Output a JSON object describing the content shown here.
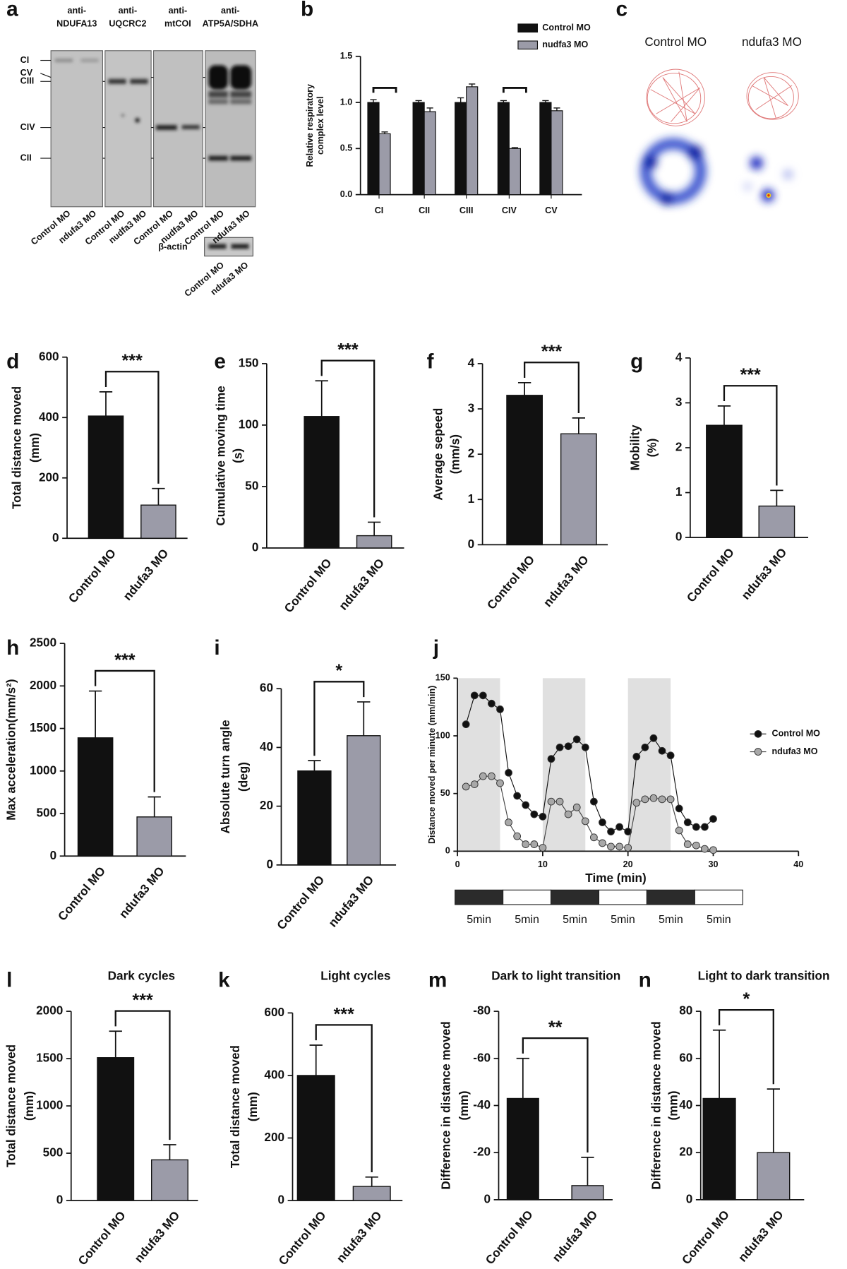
{
  "blot": {
    "panel": "a",
    "antibodies": [
      [
        "anti-",
        "NDUFA13"
      ],
      [
        "anti-",
        "UQCRC2"
      ],
      [
        "anti-",
        "mtCOI"
      ],
      [
        "anti-",
        "ATP5A/SDHA"
      ]
    ],
    "complexes": [
      "CI",
      "CV",
      "CIII",
      "CIV",
      "CII"
    ],
    "lanes": [
      [
        "Control MO",
        "ndufa3 MO"
      ],
      [
        "Control MO",
        "nudfa3 MO"
      ],
      [
        "Control MO",
        "nudfa3 MO"
      ],
      [
        "Control MO",
        "ndufa3 MO"
      ]
    ],
    "actin": {
      "label": "β-actin",
      "lanes": [
        "Control MO",
        "ndufa3 MO"
      ]
    }
  },
  "tracking": {
    "panel": "c",
    "groups": [
      "Control MO",
      "ndufa3 MO"
    ]
  },
  "chart_data": [
    {
      "panel": "b",
      "type": "grouped_bar",
      "categories": [
        "CI",
        "CII",
        "CIII",
        "CIV",
        "CV"
      ],
      "series": [
        {
          "name": "Control MO",
          "color": "#111111",
          "values": [
            1.0,
            1.0,
            1.0,
            1.0,
            1.0
          ],
          "errors": [
            0.03,
            0.02,
            0.05,
            0.02,
            0.02
          ]
        },
        {
          "name": "nudfa3 MO",
          "color": "#9b9ba8",
          "values": [
            0.66,
            0.9,
            1.17,
            0.5,
            0.91
          ],
          "errors": [
            0.02,
            0.04,
            0.03,
            0.01,
            0.03
          ]
        }
      ],
      "ylim": [
        0,
        1.5
      ],
      "yticks": [
        {
          "value": 0,
          "label": "0.0"
        },
        {
          "value": 0.5,
          "label": "0.5"
        },
        {
          "value": 1,
          "label": "1.0"
        },
        {
          "value": 1.5,
          "label": "1.5"
        }
      ],
      "ylabel": [
        "Relative respiratory",
        "complex level"
      ]
    },
    {
      "panel": "d",
      "type": "bar",
      "categories": [
        "Control MO",
        "ndufa3 MO"
      ],
      "values": [
        405,
        110
      ],
      "errors": [
        80,
        55
      ],
      "colors": [
        "#111111",
        "#9b9ba8"
      ],
      "ylim": [
        0,
        600
      ],
      "yticks": [
        0,
        200,
        400,
        600
      ],
      "ylabel": [
        "Total distance moved",
        "(mm)"
      ],
      "significance": "***"
    },
    {
      "panel": "e",
      "type": "bar",
      "categories": [
        "Control MO",
        "ndufa3 MO"
      ],
      "values": [
        107,
        10
      ],
      "errors": [
        29,
        11
      ],
      "colors": [
        "#111111",
        "#9b9ba8"
      ],
      "ylim": [
        0,
        150
      ],
      "yticks": [
        0,
        50,
        100,
        150
      ],
      "ylabel": [
        "Cumulative moving time",
        "(s)"
      ],
      "significance": "***"
    },
    {
      "panel": "f",
      "type": "bar",
      "categories": [
        "Control MO",
        "ndufa3 MO"
      ],
      "values": [
        3.3,
        2.45
      ],
      "errors": [
        0.28,
        0.35
      ],
      "colors": [
        "#111111",
        "#9b9ba8"
      ],
      "ylim": [
        0,
        4
      ],
      "yticks": [
        0,
        1,
        2,
        3,
        4
      ],
      "ylabel": [
        "Average sepeed",
        "(mm/s)"
      ],
      "significance": "***"
    },
    {
      "panel": "g",
      "type": "bar",
      "categories": [
        "Control MO",
        "ndufa3 MO"
      ],
      "values": [
        2.5,
        0.7
      ],
      "errors": [
        0.43,
        0.35
      ],
      "colors": [
        "#111111",
        "#9b9ba8"
      ],
      "ylim": [
        0,
        4
      ],
      "yticks": [
        0,
        1,
        2,
        3,
        4
      ],
      "ylabel": [
        "Mobility",
        "(%)"
      ],
      "significance": "***"
    },
    {
      "panel": "h",
      "type": "bar",
      "categories": [
        "Control MO",
        "ndufa3 MO"
      ],
      "values": [
        1390,
        460
      ],
      "errors": [
        550,
        235
      ],
      "colors": [
        "#111111",
        "#9b9ba8"
      ],
      "ylim": [
        0,
        2500
      ],
      "yticks": [
        0,
        500,
        1000,
        1500,
        2000,
        2500
      ],
      "ylabel": [
        "Max acceleration(mm/s²)"
      ],
      "significance": "***"
    },
    {
      "panel": "i",
      "type": "bar",
      "categories": [
        "Control MO",
        "ndufa3 MO"
      ],
      "values": [
        32,
        44
      ],
      "errors": [
        3.5,
        11.5
      ],
      "colors": [
        "#111111",
        "#9b9ba8"
      ],
      "ylim": [
        0,
        60
      ],
      "yticks": [
        0,
        20,
        40,
        60
      ],
      "ylabel": [
        "Absolute turn angle",
        "(deg)"
      ],
      "significance": "*"
    },
    {
      "panel": "j",
      "type": "line",
      "x": [
        1,
        2,
        3,
        4,
        5,
        6,
        7,
        8,
        9,
        10,
        11,
        12,
        13,
        14,
        15,
        16,
        17,
        18,
        19,
        20,
        21,
        22,
        23,
        24,
        25,
        26,
        27,
        28,
        29,
        30
      ],
      "series": [
        {
          "name": "Control MO",
          "color": "#111111",
          "marker_fill": "#111111",
          "values": [
            110,
            135,
            135,
            128,
            123,
            68,
            48,
            40,
            32,
            30,
            80,
            90,
            91,
            97,
            90,
            43,
            25,
            17,
            21,
            17,
            82,
            90,
            98,
            87,
            83,
            37,
            25,
            21,
            21,
            28
          ]
        },
        {
          "name": "ndufa3 MO",
          "color": "#444444",
          "marker_fill": "#a8a8a8",
          "values": [
            56,
            58,
            65,
            65,
            59,
            25,
            13,
            6,
            6,
            3,
            43,
            43,
            32,
            38,
            26,
            12,
            7,
            4,
            4,
            3,
            42,
            45,
            46,
            45,
            45,
            18,
            6,
            5,
            2,
            1
          ]
        }
      ],
      "xlim": [
        0,
        40
      ],
      "xticks": [
        0,
        10,
        20,
        30,
        40
      ],
      "ylim": [
        0,
        150
      ],
      "yticks": [
        0,
        50,
        100,
        150
      ],
      "xlabel": "Time (min)",
      "ylabel": "Distance moved per minute (mm/min)",
      "dark_periods": [
        [
          0,
          5
        ],
        [
          10,
          15
        ],
        [
          20,
          25
        ]
      ],
      "light_bar": {
        "labels": [
          "5min",
          "5min",
          "5min",
          "5min",
          "5min",
          "5min"
        ],
        "colors": [
          "#2b2b2b",
          "#ffffff",
          "#2b2b2b",
          "#ffffff",
          "#2b2b2b",
          "#ffffff"
        ]
      }
    },
    {
      "panel": "l",
      "type": "bar",
      "title": "Dark cycles",
      "categories": [
        "Control MO",
        "ndufa3 MO"
      ],
      "values": [
        1510,
        430
      ],
      "errors": [
        280,
        160
      ],
      "colors": [
        "#111111",
        "#9b9ba8"
      ],
      "ylim": [
        0,
        2000
      ],
      "yticks": [
        0,
        500,
        1000,
        1500,
        2000
      ],
      "ylabel": [
        "Total distance moved",
        "(mm)"
      ],
      "significance": "***"
    },
    {
      "panel": "k",
      "type": "bar",
      "title": "Light cycles",
      "categories": [
        "Control MO",
        "ndufa3 MO"
      ],
      "values": [
        400,
        45
      ],
      "errors": [
        97,
        30
      ],
      "colors": [
        "#111111",
        "#9b9ba8"
      ],
      "ylim": [
        0,
        600
      ],
      "yticks": [
        0,
        200,
        400,
        600
      ],
      "ylabel": [
        "Total distance moved",
        "(mm)"
      ],
      "significance": "***"
    },
    {
      "panel": "m",
      "type": "bar",
      "title": "Dark to light transition",
      "categories": [
        "Control MO",
        "ndufa3 MO"
      ],
      "values": [
        -43,
        -6
      ],
      "errors": [
        17,
        12
      ],
      "colors": [
        "#111111",
        "#9b9ba8"
      ],
      "ylim": [
        0,
        -80
      ],
      "yticks": [
        -80,
        -60,
        -40,
        -20,
        0
      ],
      "ylabel": [
        "Difference in distance moved",
        "(mm)"
      ],
      "significance": "**"
    },
    {
      "panel": "n",
      "type": "bar",
      "title": "Light to dark transition",
      "categories": [
        "Control MO",
        "ndufa3 MO"
      ],
      "values": [
        43,
        20
      ],
      "errors": [
        29,
        27
      ],
      "colors": [
        "#111111",
        "#9b9ba8"
      ],
      "ylim": [
        0,
        80
      ],
      "yticks": [
        0,
        20,
        40,
        60,
        80
      ],
      "ylabel": [
        "Difference in distance moved",
        "(mm)"
      ],
      "significance": "*"
    }
  ]
}
